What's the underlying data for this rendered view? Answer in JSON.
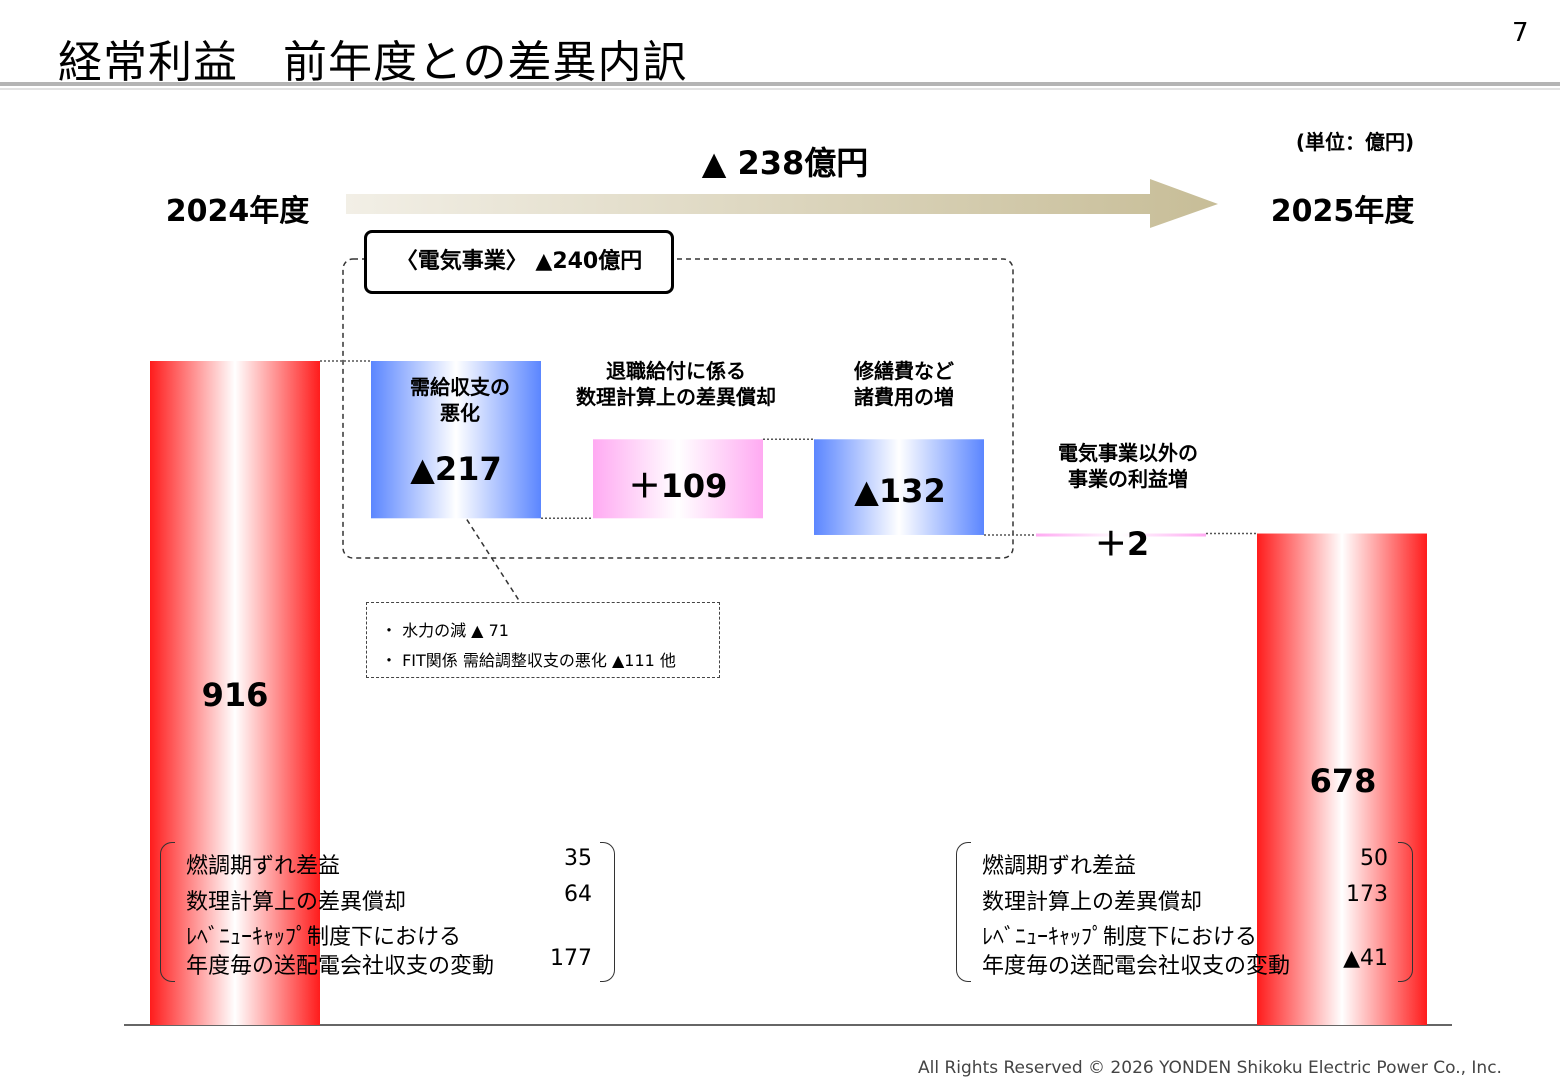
{
  "header": {
    "title": "経常利益　前年度との差異内訳",
    "page_number": "7"
  },
  "unit_label": "(単位：億円)",
  "total_change_label": "▲ 238億円",
  "year_left": "2024年度",
  "year_right": "2025年度",
  "segment_label": "〈電気事業〉 ▲240億円",
  "colors": {
    "total_bar": "#ff1c1c",
    "decrease": "#5b86ff",
    "increase": "#ffaaf2",
    "arrow": "#c7bd97"
  },
  "chart_data": {
    "type": "waterfall",
    "title": "経常利益　前年度との差異内訳",
    "unit": "億円",
    "ylim": [
      0,
      916
    ],
    "steps": [
      {
        "key": "start",
        "kind": "total",
        "value": 916,
        "label": "916",
        "category": ""
      },
      {
        "key": "supply",
        "kind": "delta",
        "value": -217,
        "label": "▲217",
        "category": [
          "需給収支の",
          "悪化"
        ]
      },
      {
        "key": "retire",
        "kind": "delta",
        "value": 109,
        "label": "＋109",
        "category": [
          "退職給付に係る",
          "数理計算上の差異償却"
        ]
      },
      {
        "key": "repair",
        "kind": "delta",
        "value": -132,
        "label": "▲132",
        "category": [
          "修繕費など",
          "諸費用の増"
        ]
      },
      {
        "key": "other",
        "kind": "delta",
        "value": 2,
        "label": "＋2",
        "category": [
          "電気事業以外の",
          "事業の利益増"
        ]
      },
      {
        "key": "end",
        "kind": "total",
        "value": 678,
        "label": "678",
        "category": ""
      }
    ]
  },
  "note": {
    "lines": [
      "・ 水力の減 ▲ 71",
      "・ FIT関係 需給調整収支の悪化 ▲111 他"
    ]
  },
  "breakdown_left": {
    "items": [
      {
        "label": "燃調期ずれ差益",
        "value": "35"
      },
      {
        "label": "数理計算上の差異償却",
        "value": "64"
      },
      {
        "label": "ﾚﾍﾞﾆｭｰｷｬｯﾌﾟ制度下における",
        "value": ""
      },
      {
        "label": "年度毎の送配電会社収支の変動",
        "value": "177"
      }
    ]
  },
  "breakdown_right": {
    "items": [
      {
        "label": "燃調期ずれ差益",
        "value": "50"
      },
      {
        "label": "数理計算上の差異償却",
        "value": "173"
      },
      {
        "label": "ﾚﾍﾞﾆｭｰｷｬｯﾌﾟ制度下における",
        "value": ""
      },
      {
        "label": "年度毎の送配電会社収支の変動",
        "value": "▲41"
      }
    ]
  },
  "footer": "All Rights Reserved © 2026 YONDEN Shikoku Electric Power Co., Inc."
}
